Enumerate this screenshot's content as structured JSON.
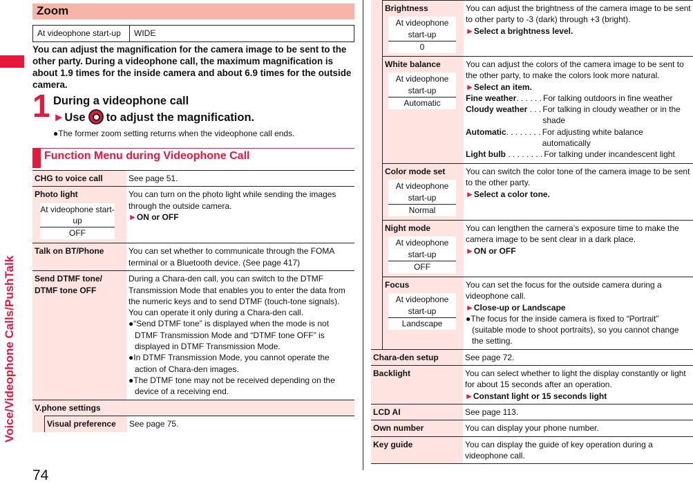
{
  "sidebar": {
    "chapter": "Voice/Videophone Calls/PushTalk"
  },
  "page_number": "74",
  "zoom": {
    "title": "Zoom",
    "setting_label": "At videophone start-up",
    "setting_value": "WIDE",
    "intro": "You can adjust the magnification for the camera image to be sent to the other party. During a videophone call, the maximum magnification is about 1.9 times for the inside camera and about 6.9 times for the outside camera.",
    "step_number": "1",
    "step_line1": "During a videophone call",
    "step_line2_pre": "Use",
    "step_line2_post": "to adjust the magnification.",
    "note": "The former zoom setting returns when the videophone call ends."
  },
  "function_menu": {
    "title": "Function Menu during Videophone Call",
    "default_label": "At videophone start-up",
    "chg": {
      "label": "CHG to voice call",
      "desc": "See page 51."
    },
    "photo": {
      "label": "Photo light",
      "default": "OFF",
      "desc": "You can turn on the photo light while sending the images through the outside camera.",
      "action": "ON or OFF"
    },
    "bt": {
      "label": "Talk on BT/Phone",
      "desc": "You can set whether to communicate through the FOMA terminal or a Bluetooth device. (See page 417)"
    },
    "dtmf": {
      "label": "Send DTMF tone/ DTMF tone OFF",
      "desc": "During a Chara-den call, you can switch to the DTMF Transmission Mode that enables you to enter the data from the numeric keys and to send DTMF (touch-tone signals). You can operate it only during a Chara-den call.",
      "notes": [
        "“Send DTMF tone” is displayed when the mode is not DTMF Transmission Mode and “DTMF tone OFF” is displayed in DTMF Transmission Mode.",
        "In DTMF Transmission Mode, you cannot operate the action of Chara-den images.",
        "The DTMF tone may not be received depending on the device of a receiving end."
      ]
    },
    "vphone": {
      "label": "V.phone settings"
    },
    "visual": {
      "label": "Visual preference",
      "desc": "See page 75."
    },
    "brightness": {
      "label": "Brightness",
      "default": "0",
      "desc": "You can adjust the brightness of the camera image to be sent to other party to -3 (dark) through +3 (bright).",
      "action": "Select a brightness level."
    },
    "white": {
      "label": "White balance",
      "default": "Automatic",
      "desc": "You can adjust the colors of the camera image to be sent to the other party, to make the colors look more natural.",
      "action": "Select an item.",
      "options": [
        {
          "k": "Fine weather",
          "d": ". . . . . .",
          "v": "For talking outdoors in fine weather"
        },
        {
          "k": "Cloudy weather",
          "d": " . . .",
          "v": "For talking in cloudy weather or in the shade"
        },
        {
          "k": "Automatic",
          "d": ". . . . . . . .",
          "v": "For adjusting white balance automatically"
        },
        {
          "k": "Light bulb",
          "d": " . . . . . . . .",
          "v": "For talking under incandescent light"
        }
      ]
    },
    "color": {
      "label": "Color mode set",
      "default": "Normal",
      "desc": "You can switch the color tone of the camera image to be sent to the other party.",
      "action": "Select a color tone."
    },
    "night": {
      "label": "Night mode",
      "default": "OFF",
      "desc": "You can lengthen the camera’s exposure time to make the camera image to be sent clear in a dark place.",
      "action": "ON or OFF"
    },
    "focus": {
      "label": "Focus",
      "default": "Landscape",
      "desc": "You can set the focus for the outside camera during a videophone call.",
      "action": "Close-up or Landscape",
      "note": "The focus for the inside camera is fixed to “Portrait” (suitable mode to shoot portraits), so you cannot change the setting."
    },
    "chara": {
      "label": "Chara-den setup",
      "desc": "See page 72."
    },
    "backlight": {
      "label": "Backlight",
      "desc": "You can select whether to light the display constantly or light for about 15 seconds after an operation.",
      "action": "Constant light or 15 seconds light"
    },
    "lcd": {
      "label": "LCD AI",
      "desc": "See page 113."
    },
    "own": {
      "label": "Own number",
      "desc": "You can display your phone number."
    },
    "key": {
      "label": "Key guide",
      "desc": "You can display the guide of key operation during a videophone call."
    }
  },
  "colors": {
    "accent": "#e8173c",
    "header_fill": "#f7b5aa",
    "label_fill": "#fde4e0"
  }
}
